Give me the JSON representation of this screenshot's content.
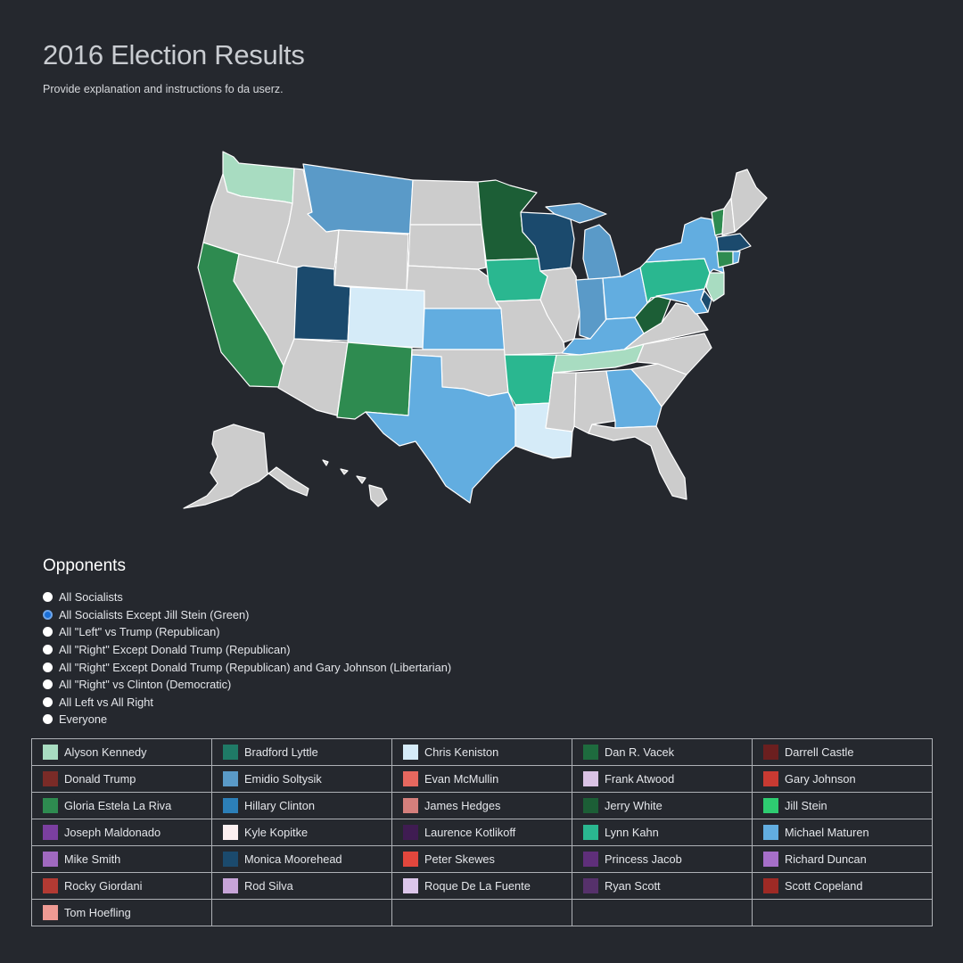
{
  "header": {
    "title": "2016 Election Results",
    "subtitle": "Provide explanation and instructions fo da userz."
  },
  "map": {
    "states": {
      "WA": {
        "fill": "#a8dcc1"
      },
      "OR": {
        "fill": "#cccccc"
      },
      "CA": {
        "fill": "#2e8b50"
      },
      "ID": {
        "fill": "#cccccc"
      },
      "NV": {
        "fill": "#cccccc"
      },
      "MT": {
        "fill": "#5a9ac8"
      },
      "WY": {
        "fill": "#cccccc"
      },
      "UT": {
        "fill": "#1b4a6d"
      },
      "CO": {
        "fill": "#d5ebf8"
      },
      "AZ": {
        "fill": "#cccccc"
      },
      "NM": {
        "fill": "#2e8b50"
      },
      "ND": {
        "fill": "#cccccc"
      },
      "SD": {
        "fill": "#cccccc"
      },
      "NE": {
        "fill": "#cccccc"
      },
      "KS": {
        "fill": "#62ade0"
      },
      "OK": {
        "fill": "#cccccc"
      },
      "TX": {
        "fill": "#62ade0"
      },
      "MN": {
        "fill": "#1c5e36"
      },
      "IA": {
        "fill": "#2ab790"
      },
      "MO": {
        "fill": "#cccccc"
      },
      "AR": {
        "fill": "#2ab790"
      },
      "LA": {
        "fill": "#d5ebf8"
      },
      "WI": {
        "fill": "#1b4a6d"
      },
      "IL": {
        "fill": "#cccccc"
      },
      "MI": {
        "fill": "#5a9ac8"
      },
      "IN": {
        "fill": "#5a9ac8"
      },
      "OH": {
        "fill": "#62ade0"
      },
      "KY": {
        "fill": "#62ade0"
      },
      "TN": {
        "fill": "#a8dcc1"
      },
      "MS": {
        "fill": "#cccccc"
      },
      "AL": {
        "fill": "#cccccc"
      },
      "GA": {
        "fill": "#62ade0"
      },
      "FL": {
        "fill": "#cccccc"
      },
      "SC": {
        "fill": "#cccccc"
      },
      "NC": {
        "fill": "#cccccc"
      },
      "VA": {
        "fill": "#cccccc"
      },
      "WV": {
        "fill": "#1c5e36"
      },
      "PA": {
        "fill": "#2ab790"
      },
      "NY": {
        "fill": "#62ade0"
      },
      "VT": {
        "fill": "#2e8b50"
      },
      "NH": {
        "fill": "#cccccc"
      },
      "ME": {
        "fill": "#cccccc"
      },
      "MA": {
        "fill": "#1b4a6d"
      },
      "CT": {
        "fill": "#2e8b50"
      },
      "RI": {
        "fill": "#62ade0"
      },
      "NJ": {
        "fill": "#a8dcc1"
      },
      "DE": {
        "fill": "#1b4a6d"
      },
      "MD": {
        "fill": "#62ade0"
      },
      "AK": {
        "fill": "#cccccc"
      },
      "HI": {
        "fill": "#cccccc"
      }
    }
  },
  "opponents": {
    "title": "Opponents",
    "options": [
      {
        "label": "All Socialists",
        "checked": false
      },
      {
        "label": "All Socialists Except Jill Stein (Green)",
        "checked": true
      },
      {
        "label": "All \"Left\" vs Trump (Republican)",
        "checked": false
      },
      {
        "label": "All \"Right\" Except Donald Trump (Republican)",
        "checked": false
      },
      {
        "label": "All \"Right\" Except Donald Trump (Republican) and Gary Johnson (Libertarian)",
        "checked": false
      },
      {
        "label": "All \"Right\" vs Clinton (Democratic)",
        "checked": false
      },
      {
        "label": "All Left vs All Right",
        "checked": false
      },
      {
        "label": "Everyone",
        "checked": false
      }
    ]
  },
  "legend": {
    "candidates": [
      {
        "name": "Alyson Kennedy",
        "color": "#a8dcc1"
      },
      {
        "name": "Bradford Lyttle",
        "color": "#1f7a66"
      },
      {
        "name": "Chris Keniston",
        "color": "#d5ebf8"
      },
      {
        "name": "Dan R. Vacek",
        "color": "#1e6b3e"
      },
      {
        "name": "Darrell Castle",
        "color": "#6b1f1f"
      },
      {
        "name": "Donald Trump",
        "color": "#7a2b27"
      },
      {
        "name": "Emidio Soltysik",
        "color": "#5a9ac8"
      },
      {
        "name": "Evan McMullin",
        "color": "#e6685f"
      },
      {
        "name": "Frank Atwood",
        "color": "#d9c2e4"
      },
      {
        "name": "Gary Johnson",
        "color": "#c83a32"
      },
      {
        "name": "Gloria Estela La Riva",
        "color": "#2e8b50"
      },
      {
        "name": "Hillary Clinton",
        "color": "#2c7fb8"
      },
      {
        "name": "James Hedges",
        "color": "#d47f7c"
      },
      {
        "name": "Jerry White",
        "color": "#1c5e36"
      },
      {
        "name": "Jill Stein",
        "color": "#2ecc71"
      },
      {
        "name": "Joseph Maldonado",
        "color": "#7b3fa0"
      },
      {
        "name": "Kyle Kopitke",
        "color": "#fbeff0"
      },
      {
        "name": "Laurence Kotlikoff",
        "color": "#3f1c52"
      },
      {
        "name": "Lynn Kahn",
        "color": "#2ab790"
      },
      {
        "name": "Michael Maturen",
        "color": "#62ade0"
      },
      {
        "name": "Mike Smith",
        "color": "#a069c0"
      },
      {
        "name": "Monica Moorehead",
        "color": "#1b4a6d"
      },
      {
        "name": "Peter Skewes",
        "color": "#e2473d"
      },
      {
        "name": "Princess Jacob",
        "color": "#5f2f7a"
      },
      {
        "name": "Richard Duncan",
        "color": "#a66fc9"
      },
      {
        "name": "Rocky Giordani",
        "color": "#b23a33"
      },
      {
        "name": "Rod Silva",
        "color": "#c7a4d8"
      },
      {
        "name": "Roque De La Fuente",
        "color": "#dcc6ea"
      },
      {
        "name": "Ryan Scott",
        "color": "#56316b"
      },
      {
        "name": "Scott Copeland",
        "color": "#9e2a25"
      },
      {
        "name": "Tom Hoefling",
        "color": "#ee9a93"
      }
    ]
  }
}
